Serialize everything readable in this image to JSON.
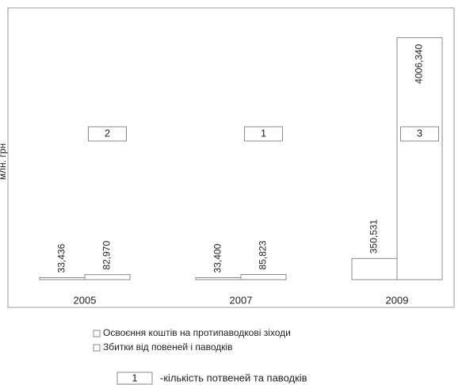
{
  "chart_data": {
    "type": "bar",
    "y_label": "млн. грн",
    "categories": [
      "2005",
      "2007",
      "2009"
    ],
    "series": [
      {
        "name": "Освоєння коштів на протипаводкові зіходи",
        "color": "#ffffff",
        "values": [
          33.436,
          33.4,
          350.531
        ],
        "value_labels": [
          "33,436",
          "33,400",
          "350,531"
        ]
      },
      {
        "name": "Збитки від повеней і паводків",
        "color": "#ffffff",
        "values": [
          82.97,
          85.823,
          4006.34
        ],
        "value_labels": [
          "82,970",
          "85,823",
          "4006,340"
        ]
      }
    ],
    "flood_counts": [
      2,
      1,
      3
    ],
    "count_legend": {
      "key": "1",
      "text": "-кількість потвеней та паводків"
    },
    "ylim": [
      0,
      4500
    ]
  }
}
